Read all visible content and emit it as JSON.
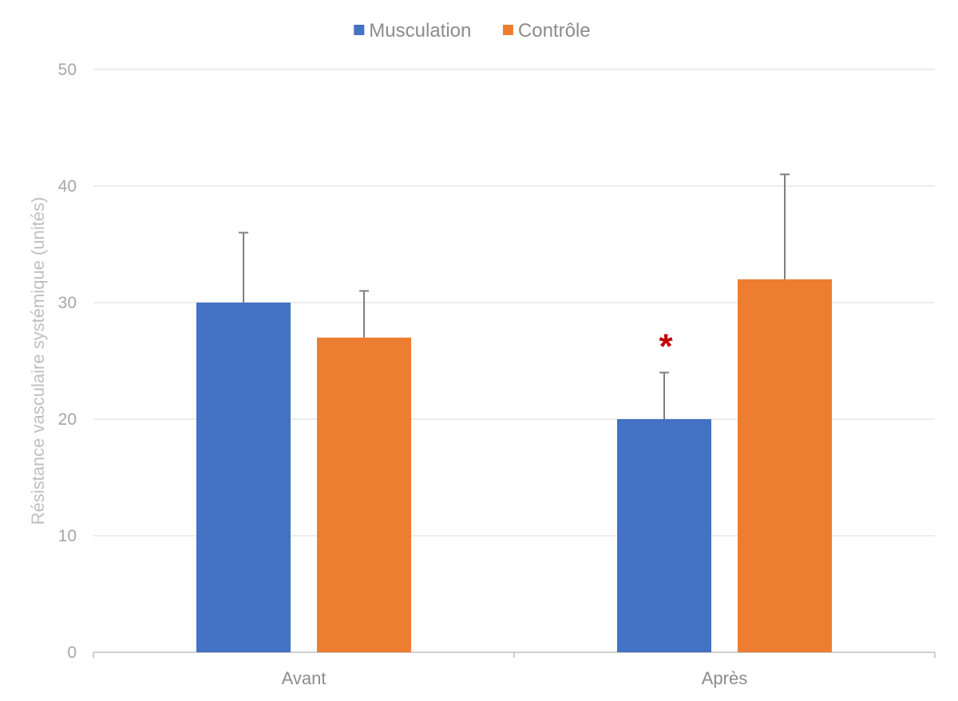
{
  "chart_data": {
    "type": "bar",
    "title": "",
    "xlabel": "",
    "ylabel": "Résistance vasculaire systémique (unités)",
    "categories": [
      "Avant",
      "Après"
    ],
    "series": [
      {
        "name": "Musculation",
        "values": [
          30,
          20
        ],
        "error_upper": [
          6,
          4
        ],
        "color": "#4472c4"
      },
      {
        "name": "Contrôle",
        "values": [
          27,
          32
        ],
        "error_upper": [
          4,
          9
        ],
        "color": "#ed7d31"
      }
    ],
    "ylim": [
      0,
      50
    ],
    "yticks": [
      0,
      10,
      20,
      30,
      40,
      50
    ],
    "grid": true,
    "legend_position": "top-center",
    "annotations": [
      {
        "text": "*",
        "category": "Après",
        "series": "Musculation",
        "color": "#c00000"
      }
    ]
  }
}
